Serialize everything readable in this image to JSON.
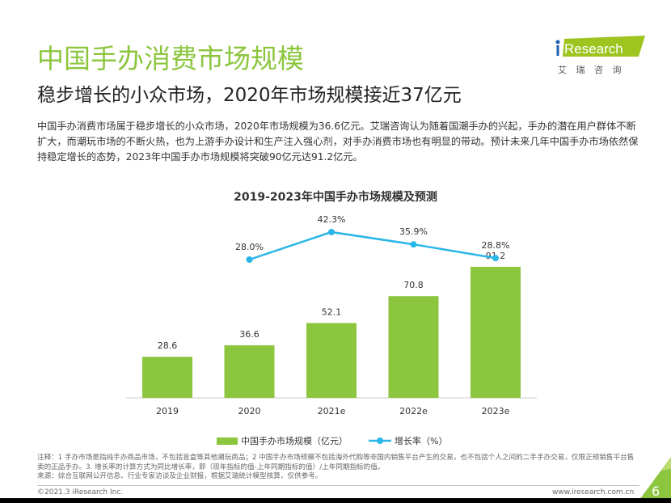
{
  "header": {
    "title": "中国手办消费市场规模",
    "subtitle": "稳步增长的小众市场，2020年市场规模接近37亿元",
    "description": "中国手办消费市场属于稳步增长的小众市场，2020年市场规模为36.6亿元。艾瑞咨询认为随着国潮手办的兴起，手办的潜在用户群体不断扩大，而潮玩市场的不断火热，也为上游手办设计和生产注入强心剂，对手办消费市场也有明显的带动。预计未来几年中国手办市场依然保持稳定增长的态势，2023年中国手办市场规模将突破90亿元达91.2亿元。"
  },
  "logo": {
    "brand": "iResearch",
    "cn": "艾 瑞 咨 询"
  },
  "chart_data": {
    "type": "bar",
    "title": "2019-2023年中国手办市场规模及预测",
    "categories": [
      "2019",
      "2020",
      "2021e",
      "2022e",
      "2023e"
    ],
    "series": [
      {
        "name": "中国手办市场规模（亿元）",
        "type": "bar",
        "values": [
          28.6,
          36.6,
          52.1,
          70.8,
          91.2
        ],
        "labels": [
          "28.6",
          "36.6",
          "52.1",
          "70.8",
          "91.2"
        ],
        "color": "#8cc63f"
      },
      {
        "name": "增长率（%）",
        "type": "line",
        "x": [
          "2020",
          "2021e",
          "2022e",
          "2023e"
        ],
        "values": [
          28.0,
          42.3,
          35.9,
          28.8
        ],
        "labels": [
          "28.0%",
          "42.3%",
          "35.9%",
          "28.8%"
        ],
        "color": "#29b6e8"
      }
    ],
    "legend": "bottom"
  },
  "footer": {
    "notes": "注释：1 手办市场是指纯手办商品市场，不包括盲盒等其他潮玩商品；2 中国手办市场规模不包括海外代购等非国内销售平台产生的交易，也不包括个人之间的二手手办交易，仅限正规销售平台售卖的正品手办。3. 增长率的计算方式为同比增长率，即（现年指标的值-上年同期指标的值）/上年同期指标的值。",
    "source": "来源：综合互联网公开信息、行业专家访谈及企业财报，根据艾瑞统计模型核算，仅供参考。",
    "copyright": "©2021.3 iResearch Inc.",
    "url": "www.iresearch.com.cn",
    "page": "6"
  }
}
